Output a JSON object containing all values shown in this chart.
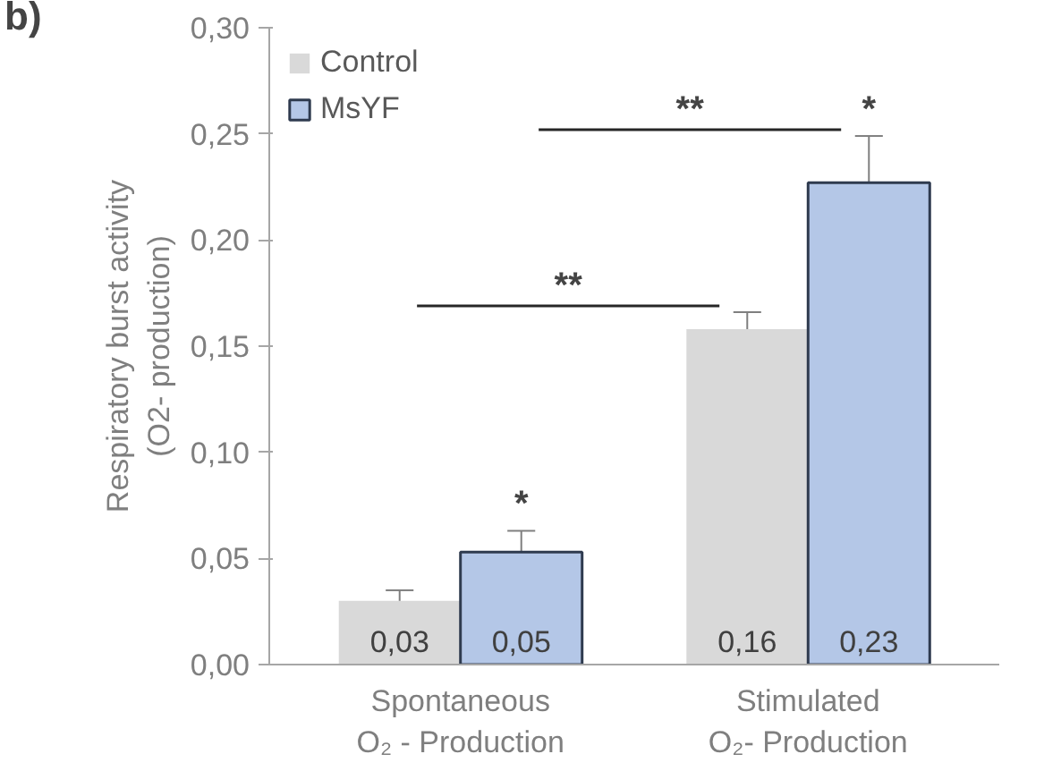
{
  "chart_data": {
    "type": "bar",
    "ylabel": "Respiratory burst activity\n(O2- production)",
    "categories": [
      "Spontaneous\nO₂ - Production",
      "Stimulated\nO₂- Production"
    ],
    "series": [
      {
        "name": "Control",
        "color": "#d9d9d9",
        "values": [
          0.03,
          0.158
        ],
        "errors": [
          0.005,
          0.008
        ],
        "value_labels": [
          "0,03",
          "0,16"
        ]
      },
      {
        "name": "MsYF",
        "color": "#b4c7e7",
        "values": [
          0.053,
          0.227
        ],
        "errors": [
          0.01,
          0.022
        ],
        "value_labels": [
          "0,05",
          "0,23"
        ]
      }
    ],
    "ylim": [
      0,
      0.3
    ],
    "yticks": [
      {
        "value": 0,
        "label": "0,00"
      },
      {
        "value": 0.05,
        "label": "0,05"
      },
      {
        "value": 0.1,
        "label": "0,10"
      },
      {
        "value": 0.15,
        "label": "0,15"
      },
      {
        "value": 0.2,
        "label": "0,20"
      },
      {
        "value": 0.25,
        "label": "0,25"
      },
      {
        "value": 0.3,
        "label": "0,30"
      }
    ],
    "grid": false,
    "legend": "top left",
    "annotations": [
      "b)",
      "*",
      "*",
      "**",
      "**"
    ]
  }
}
